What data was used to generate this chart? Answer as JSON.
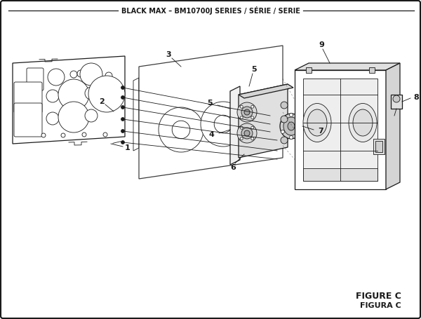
{
  "title": "BLACK MAX – BM10700J SERIES / SÉRIE / SERIE",
  "figure_label": "FIGURE C",
  "figure_label2": "FIGURA C",
  "bg_color": "#ffffff",
  "line_color": "#1a1a1a",
  "fig_width": 6.0,
  "fig_height": 4.55,
  "dpi": 100
}
